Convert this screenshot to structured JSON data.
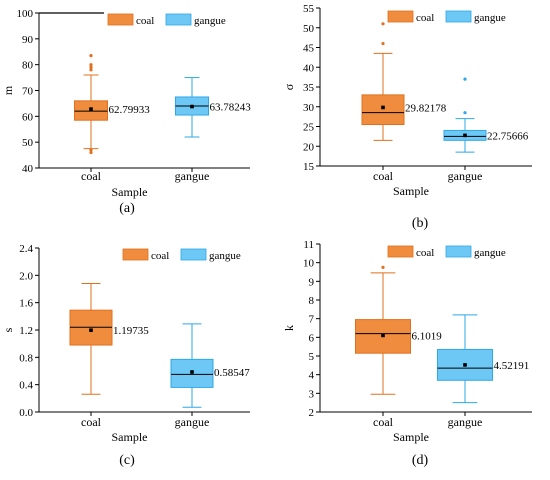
{
  "colors": {
    "coal_fill": "#f08c3e",
    "coal_edge": "#e0701f",
    "gangue_fill": "#6ec8f5",
    "gangue_edge": "#2ea8e6",
    "median_line": "#000000"
  },
  "chart_data": [
    {
      "type": "boxplot",
      "panel_label": "(a)",
      "ylabel": "m",
      "xlabel": "Sample",
      "categories": [
        "coal",
        "gangue"
      ],
      "legend": [
        "coal",
        "gangue"
      ],
      "legend_position": "top-right",
      "ylim": [
        40,
        100
      ],
      "yticks": [
        40,
        50,
        60,
        70,
        80,
        90,
        100
      ],
      "boxes": [
        {
          "name": "coal",
          "whisker_low": 47.5,
          "q1": 58.5,
          "median": 62.0,
          "q3": 66.0,
          "whisker_high": 76.0,
          "mean": 62.79933,
          "mean_label": "62.79933",
          "outliers": [
            83.5,
            80.0,
            79.0,
            78.0,
            47.0,
            46.0
          ]
        },
        {
          "name": "gangue",
          "whisker_low": 52.0,
          "q1": 60.5,
          "median": 64.0,
          "q3": 67.5,
          "whisker_high": 75.0,
          "mean": 63.78243,
          "mean_label": "63.78243",
          "outliers": []
        }
      ]
    },
    {
      "type": "boxplot",
      "panel_label": "(b)",
      "ylabel": "σ",
      "xlabel": "Sample",
      "categories": [
        "coal",
        "gangue"
      ],
      "legend": [
        "coal",
        "gangue"
      ],
      "legend_position": "top-right",
      "ylim": [
        15,
        55
      ],
      "yticks": [
        15,
        20,
        25,
        30,
        35,
        40,
        45,
        50,
        55
      ],
      "boxes": [
        {
          "name": "coal",
          "whisker_low": 21.5,
          "q1": 25.5,
          "median": 28.5,
          "q3": 33.0,
          "whisker_high": 43.5,
          "mean": 29.82178,
          "mean_label": "29.82178",
          "outliers": [
            51.0,
            46.0
          ]
        },
        {
          "name": "gangue",
          "whisker_low": 18.5,
          "q1": 21.5,
          "median": 22.5,
          "q3": 24.0,
          "whisker_high": 27.0,
          "mean": 22.75666,
          "mean_label": "22.75666",
          "outliers": [
            37.0,
            28.5
          ]
        }
      ]
    },
    {
      "type": "boxplot",
      "panel_label": "(c)",
      "ylabel": "s",
      "xlabel": "Sample",
      "categories": [
        "coal",
        "gangue"
      ],
      "legend": [
        "coal",
        "gangue"
      ],
      "legend_position": "top-right",
      "ylim": [
        0.0,
        2.4
      ],
      "yticks": [
        "0.0",
        "0.4",
        "0.8",
        "1.2",
        "1.6",
        "2.0",
        "2.4"
      ],
      "boxes": [
        {
          "name": "coal",
          "whisker_low": 0.26,
          "q1": 0.98,
          "median": 1.24,
          "q3": 1.49,
          "whisker_high": 1.88,
          "mean": 1.19735,
          "mean_label": "1.19735",
          "outliers": []
        },
        {
          "name": "gangue",
          "whisker_low": 0.07,
          "q1": 0.36,
          "median": 0.55,
          "q3": 0.77,
          "whisker_high": 1.29,
          "mean": 0.58547,
          "mean_label": "0.58547",
          "outliers": []
        }
      ]
    },
    {
      "type": "boxplot",
      "panel_label": "(d)",
      "ylabel": "k",
      "xlabel": "Sample",
      "categories": [
        "coal",
        "gangue"
      ],
      "legend": [
        "coal",
        "gangue"
      ],
      "legend_position": "top-right",
      "ylim": [
        2,
        11
      ],
      "yticks": [
        2,
        3,
        4,
        5,
        6,
        7,
        8,
        9,
        10,
        11
      ],
      "boxes": [
        {
          "name": "coal",
          "whisker_low": 2.95,
          "q1": 5.15,
          "median": 6.2,
          "q3": 6.95,
          "whisker_high": 9.45,
          "mean": 6.1019,
          "mean_label": "6.1019",
          "outliers": [
            9.75
          ]
        },
        {
          "name": "gangue",
          "whisker_low": 2.5,
          "q1": 3.7,
          "median": 4.35,
          "q3": 5.35,
          "whisker_high": 7.2,
          "mean": 4.52191,
          "mean_label": "4.52191",
          "outliers": []
        }
      ]
    }
  ]
}
